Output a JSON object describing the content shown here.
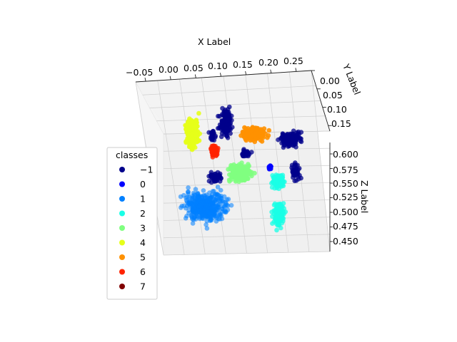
{
  "chart_data": {
    "type": "scatter",
    "projection": "3d",
    "title": "",
    "xlabel": "X Label",
    "ylabel": "Y Label",
    "zlabel": "Z Label",
    "x_ticks": [
      "−0.05",
      "0.00",
      "0.05",
      "0.10",
      "0.15",
      "0.20",
      "0.25"
    ],
    "y_ticks": [
      "0.00",
      "0.05",
      "0.10",
      "0.15"
    ],
    "z_ticks": [
      "0.600",
      "0.575",
      "0.550",
      "0.525",
      "0.500",
      "0.475",
      "0.450"
    ],
    "xlim": [
      -0.07,
      0.28
    ],
    "ylim": [
      0.0,
      0.18
    ],
    "zlim": [
      0.44,
      0.61
    ],
    "grid": true,
    "legend": {
      "title": "classes",
      "placement": "center-left",
      "entries": [
        {
          "label": "−1",
          "color": "#00008b"
        },
        {
          "label": "0",
          "color": "#0000ff"
        },
        {
          "label": "1",
          "color": "#0080ff"
        },
        {
          "label": "2",
          "color": "#19ffe6"
        },
        {
          "label": "3",
          "color": "#80ff80"
        },
        {
          "label": "4",
          "color": "#e6ff19"
        },
        {
          "label": "5",
          "color": "#ff9100"
        },
        {
          "label": "6",
          "color": "#ff2300"
        },
        {
          "label": "7",
          "color": "#800000"
        }
      ]
    },
    "clusters": [
      {
        "class": "-1",
        "color": "#00008b",
        "x_range": [
          -0.04,
          0.26
        ],
        "y_range": [
          0.0,
          0.16
        ],
        "z_range": [
          0.5,
          0.6
        ]
      },
      {
        "class": "0",
        "color": "#0000ff",
        "x_range": [
          0.17,
          0.19
        ],
        "y_range": [
          0.08,
          0.12
        ],
        "z_range": [
          0.56,
          0.58
        ]
      },
      {
        "class": "1",
        "color": "#0080ff",
        "x_range": [
          -0.05,
          0.08
        ],
        "y_range": [
          0.0,
          0.1
        ],
        "z_range": [
          0.49,
          0.54
        ]
      },
      {
        "class": "2",
        "color": "#19ffe6",
        "x_range": [
          0.16,
          0.22
        ],
        "y_range": [
          0.05,
          0.15
        ],
        "z_range": [
          0.45,
          0.56
        ]
      },
      {
        "class": "3",
        "color": "#80ff80",
        "x_range": [
          0.05,
          0.15
        ],
        "y_range": [
          0.05,
          0.12
        ],
        "z_range": [
          0.54,
          0.58
        ]
      },
      {
        "class": "4",
        "color": "#e6ff19",
        "x_range": [
          -0.03,
          0.02
        ],
        "y_range": [
          0.05,
          0.15
        ],
        "z_range": [
          0.57,
          0.61
        ]
      },
      {
        "class": "5",
        "color": "#ff9100",
        "x_range": [
          0.1,
          0.18
        ],
        "y_range": [
          0.1,
          0.16
        ],
        "z_range": [
          0.59,
          0.61
        ]
      },
      {
        "class": "6",
        "color": "#ff2300",
        "x_range": [
          0.03,
          0.06
        ],
        "y_range": [
          0.05,
          0.1
        ],
        "z_range": [
          0.57,
          0.59
        ]
      }
    ]
  }
}
